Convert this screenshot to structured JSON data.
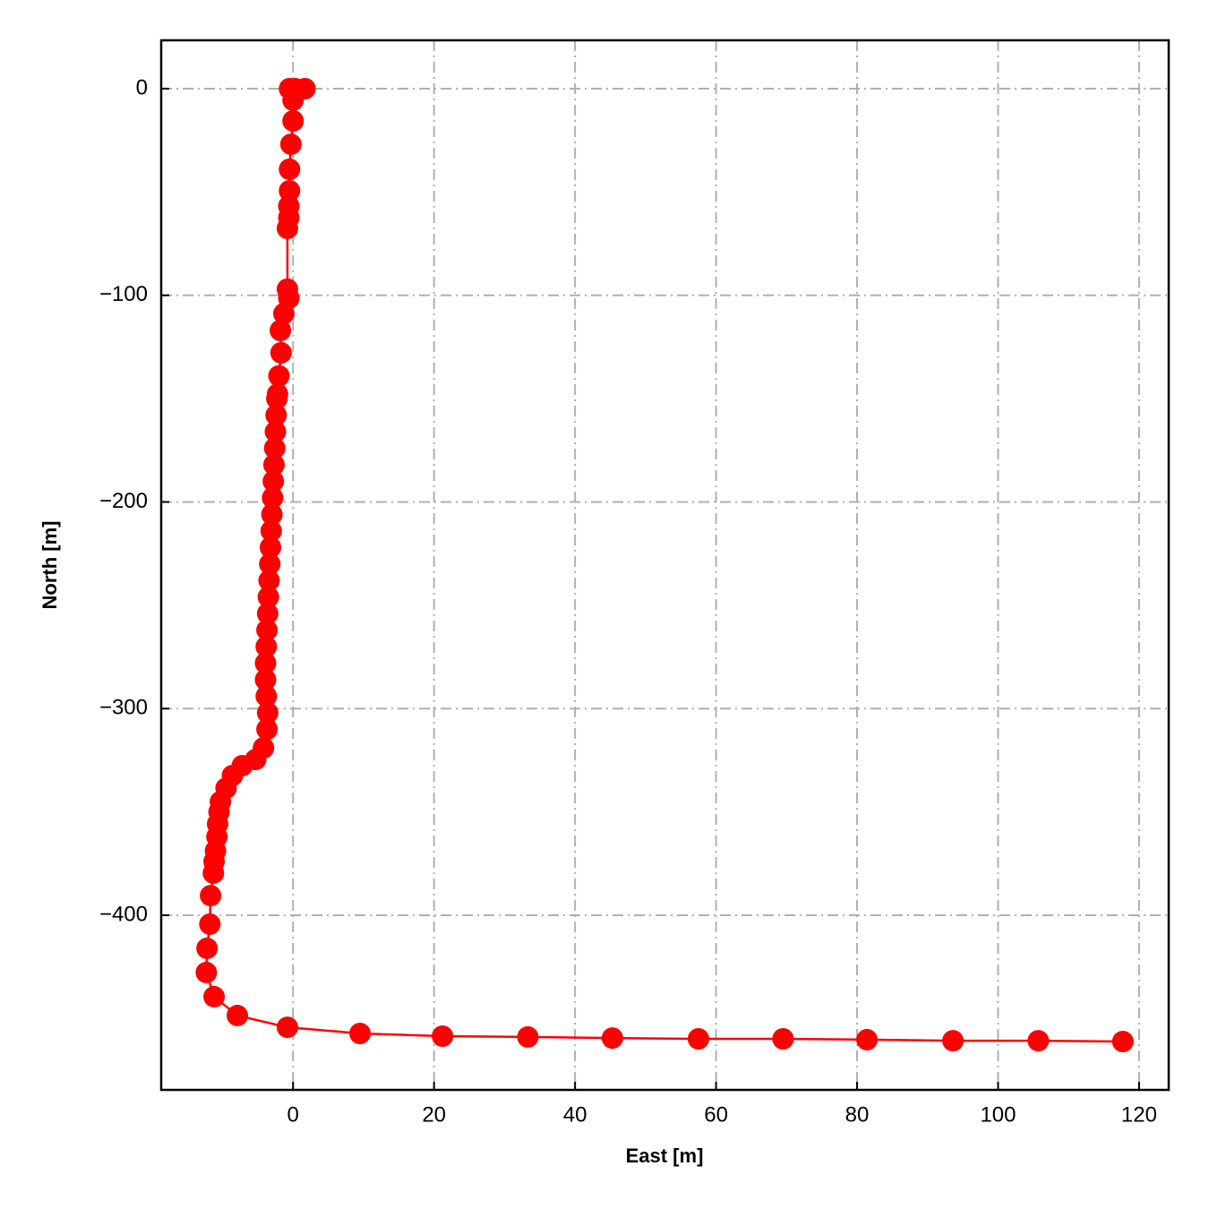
{
  "chart_data": {
    "type": "line",
    "xlabel": "East [m]",
    "ylabel": "North [m]",
    "color": "#ff0000",
    "x": [
      -0.5,
      0.3,
      1.7,
      0.0,
      0.0,
      -0.3,
      -0.5,
      -0.5,
      -0.6,
      -0.6,
      -0.8,
      -0.8,
      -0.6,
      -1.3,
      -1.8,
      -1.7,
      -2.0,
      -2.2,
      -2.3,
      -2.4,
      -2.5,
      -2.6,
      -2.7,
      -2.8,
      -2.9,
      -3.0,
      -3.1,
      -3.2,
      -3.3,
      -3.4,
      -3.5,
      -3.6,
      -3.7,
      -3.8,
      -3.9,
      -3.9,
      -3.8,
      -3.6,
      -3.7,
      -4.2,
      -5.3,
      -7.2,
      -8.6,
      -9.5,
      -10.3,
      -10.5,
      -10.7,
      -10.8,
      -11.0,
      -11.2,
      -11.3,
      -11.7,
      -11.8,
      -12.2,
      -12.3,
      -11.2,
      -7.9,
      -0.8,
      9.5,
      21.2,
      33.3,
      45.3,
      57.5,
      69.5,
      81.4,
      93.6,
      105.7,
      117.7
    ],
    "values": [
      0,
      0,
      0,
      -5.6,
      -15.6,
      -26.9,
      -39,
      -49.4,
      -56.8,
      -62.4,
      -67.6,
      -97,
      -101.4,
      -108.8,
      -117,
      -127.8,
      -139,
      -147.8,
      -150,
      -158,
      -166,
      -174,
      -182,
      -190,
      -198,
      -206,
      -214,
      -222,
      -230,
      -238,
      -246,
      -254,
      -262,
      -270,
      -278,
      -286,
      -294,
      -302,
      -310,
      -319,
      -324.6,
      -327.6,
      -332.4,
      -338.5,
      -345,
      -350,
      -355.8,
      -362,
      -368.8,
      -374,
      -379.6,
      -390.5,
      -404.3,
      -416,
      -427.7,
      -439.4,
      -448.5,
      -454.2,
      -457.2,
      -458.5,
      -458.9,
      -459.4,
      -459.8,
      -459.8,
      -460.2,
      -460.7,
      -460.7,
      -461.1
    ],
    "xlim": [
      -18.7,
      124.2
    ],
    "ylim": [
      -484.5,
      23.4
    ],
    "xticks": [
      0,
      20,
      40,
      60,
      80,
      100,
      120
    ],
    "yticks": [
      {
        "value": 0,
        "label": "0"
      },
      {
        "value": -100,
        "label": "−100"
      },
      {
        "value": -200,
        "label": "−200"
      },
      {
        "value": -300,
        "label": "−300"
      },
      {
        "value": -400,
        "label": "−400"
      }
    ],
    "grid": true
  }
}
